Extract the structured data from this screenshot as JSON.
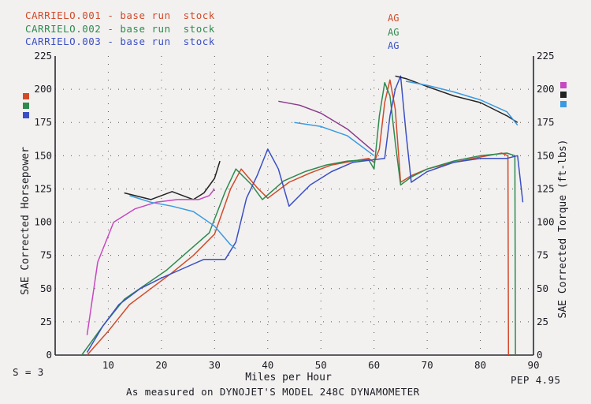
{
  "chart_data": {
    "type": "line",
    "xlabel": "Miles per Hour",
    "ylabel_left": "SAE Corrected Horsepower",
    "ylabel_right": "SAE Corrected Torque (ft-lbs)",
    "xlim": [
      0,
      90
    ],
    "ylim_left": [
      0,
      225
    ],
    "ylim_right": [
      0,
      225
    ],
    "x_ticks": [
      "10",
      "20",
      "30",
      "40",
      "50",
      "60",
      "70",
      "80",
      "90"
    ],
    "y_ticks_left": [
      "0",
      "25",
      "50",
      "75",
      "100",
      "125",
      "150",
      "175",
      "200",
      "225"
    ],
    "y_ticks_right": [
      "0",
      "25",
      "50",
      "75",
      "100",
      "125",
      "150",
      "175",
      "200",
      "225"
    ],
    "grid": true,
    "legend_placement": "top-left",
    "legend": [
      {
        "run": "CARRIELO.001 - base run  stock",
        "tag": "AG",
        "color": "#d24a2a"
      },
      {
        "run": "CARRIELO.002 - base run  stock",
        "tag": "AG",
        "color": "#2f8a4e"
      },
      {
        "run": "CARRIELO.003 - base run  stock",
        "tag": "AG",
        "color": "#3b4fc4"
      }
    ],
    "series": [
      {
        "name": "CARRIELO.001 - base run  stock",
        "kind": "horsepower",
        "color": "#d24a2a",
        "x": [
          6,
          10,
          14,
          18,
          22,
          26,
          30,
          33,
          35,
          38,
          40,
          44,
          48,
          52,
          56,
          59,
          60,
          61,
          62,
          63,
          64,
          65,
          67,
          70,
          75,
          80,
          84,
          85.2,
          85.3
        ],
        "y": [
          0,
          18,
          38,
          50,
          62,
          75,
          91,
          125,
          140,
          126,
          118,
          130,
          137,
          143,
          146,
          148,
          145,
          155,
          190,
          207,
          185,
          130,
          135,
          140,
          145,
          149,
          152,
          150,
          0
        ]
      },
      {
        "name": "CARRIELO.002 - base run  stock",
        "kind": "horsepower",
        "color": "#2f8a4e",
        "x": [
          5,
          9,
          13,
          17,
          21,
          25,
          29,
          32,
          34,
          37,
          39,
          43,
          47,
          51,
          55,
          59,
          60,
          61,
          62,
          63,
          64,
          65,
          67,
          70,
          75,
          80,
          85,
          86.5,
          86.6
        ],
        "y": [
          0,
          22,
          42,
          53,
          64,
          78,
          92,
          123,
          140,
          128,
          117,
          131,
          138,
          143,
          146,
          147,
          140,
          180,
          205,
          195,
          160,
          128,
          134,
          140,
          146,
          150,
          152,
          150,
          0
        ]
      },
      {
        "name": "CARRIELO.003 - base run  stock",
        "kind": "horsepower",
        "color": "#3b4fc4",
        "x": [
          6,
          9,
          12,
          16,
          20,
          24,
          28,
          32,
          34,
          36,
          38,
          40,
          42,
          44,
          48,
          52,
          56,
          60,
          62,
          63,
          64,
          65,
          66,
          67,
          70,
          75,
          80,
          85,
          87,
          88
        ],
        "y": [
          2,
          22,
          38,
          50,
          58,
          65,
          72,
          72,
          85,
          118,
          135,
          155,
          140,
          112,
          128,
          138,
          145,
          147,
          148,
          180,
          200,
          210,
          168,
          130,
          138,
          145,
          148,
          148,
          150,
          115
        ]
      },
      {
        "name": "CARRIELO.001 - base run  stock",
        "kind": "torque",
        "color": "#222222",
        "x": [
          13,
          18,
          22,
          26,
          28,
          30,
          31
        ],
        "y": [
          122,
          117,
          123,
          117,
          122,
          133,
          146
        ]
      },
      {
        "name": "CARRIELO.002 - base run  stock",
        "kind": "torque",
        "color": "#c748c0",
        "x": [
          6,
          8,
          11,
          15,
          19,
          23,
          27,
          29,
          30
        ],
        "y": [
          15,
          70,
          100,
          110,
          115,
          117,
          117,
          120,
          125
        ]
      },
      {
        "name": "CARRIELO.003 - base run  stock",
        "kind": "torque",
        "color": "#3b9ae0",
        "x": [
          14,
          18,
          22,
          26,
          30,
          33,
          34
        ],
        "y": [
          120,
          115,
          112,
          108,
          97,
          83,
          80
        ]
      },
      {
        "name": "CARRIELO.001 - base run  stock",
        "kind": "torque",
        "color": "#8a3a8c",
        "x": [
          42,
          46,
          50,
          55,
          60
        ],
        "y": [
          191,
          188,
          182,
          170,
          153
        ]
      },
      {
        "name": "CARRIELO.003 - base run  stock",
        "kind": "torque",
        "color": "#3b9ae0",
        "x": [
          45,
          50,
          55,
          60
        ],
        "y": [
          175,
          172,
          165,
          150
        ]
      },
      {
        "name": "CARRIELO.001 - base run  stock",
        "kind": "torque",
        "color": "#222222",
        "x": [
          64,
          66,
          70,
          75,
          80,
          85,
          87
        ],
        "y": [
          210,
          208,
          202,
          195,
          190,
          180,
          175
        ]
      },
      {
        "name": "CARRIELO.003 - base run  stock",
        "kind": "torque",
        "color": "#3b9ae0",
        "x": [
          66,
          70,
          75,
          80,
          85,
          87
        ],
        "y": [
          206,
          203,
          198,
          192,
          183,
          173
        ]
      }
    ]
  },
  "footer": {
    "smoothing": "S = 3",
    "version": "PEP 4.95",
    "caption": "As measured on DYNOJET'S MODEL 248C DYNAMOMETER"
  }
}
